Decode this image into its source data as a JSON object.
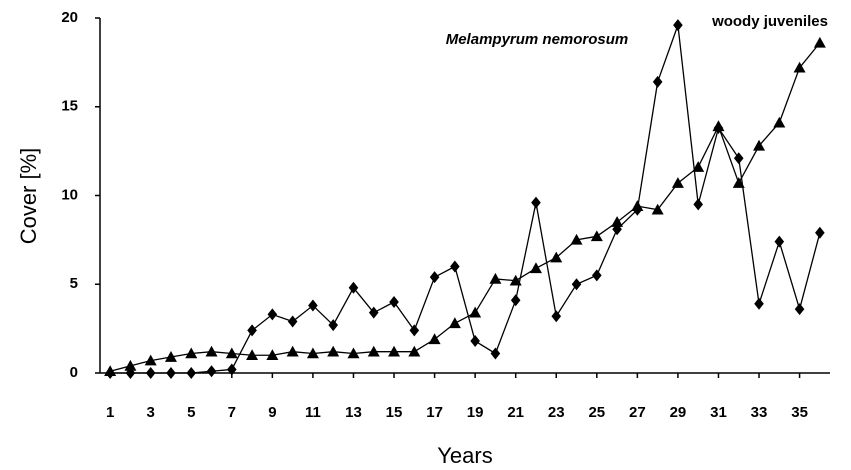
{
  "chart_data": {
    "type": "line",
    "x_label": "Years",
    "y_label": "Cover [%]",
    "x": [
      1,
      2,
      3,
      4,
      5,
      6,
      7,
      8,
      9,
      10,
      11,
      12,
      13,
      14,
      15,
      16,
      17,
      18,
      19,
      20,
      21,
      22,
      23,
      24,
      25,
      26,
      27,
      28,
      29,
      30,
      31,
      32,
      33,
      34,
      35,
      36
    ],
    "series": [
      {
        "name": "Melampyrum nemorosum",
        "color": "#000000",
        "marker": "diamond",
        "values": [
          0,
          0,
          0,
          0,
          0,
          0.1,
          0.2,
          2.4,
          3.3,
          2.9,
          3.8,
          2.7,
          4.8,
          3.4,
          4.0,
          2.4,
          5.4,
          6.0,
          1.8,
          1.1,
          4.1,
          9.6,
          3.2,
          5.0,
          5.5,
          8.1,
          9.2,
          16.4,
          19.6,
          9.5,
          13.8,
          12.1,
          3.9,
          7.4,
          3.6,
          7.9
        ]
      },
      {
        "name": "woody juveniles",
        "color": "#000000",
        "marker": "triangle",
        "values": [
          0.1,
          0.4,
          0.7,
          0.9,
          1.1,
          1.2,
          1.1,
          1.0,
          1.0,
          1.2,
          1.1,
          1.2,
          1.1,
          1.2,
          1.2,
          1.2,
          1.9,
          2.8,
          3.4,
          5.3,
          5.2,
          5.9,
          6.5,
          7.5,
          7.7,
          8.5,
          9.4,
          9.2,
          10.7,
          11.6,
          13.9,
          10.7,
          12.8,
          14.1,
          17.2,
          18.6
        ]
      }
    ],
    "xlim": [
      0.5,
      36.5
    ],
    "xticks": [
      1,
      3,
      5,
      7,
      9,
      11,
      13,
      15,
      17,
      19,
      21,
      23,
      25,
      27,
      29,
      31,
      33,
      35
    ],
    "ylim": [
      0,
      20
    ],
    "yticks": [
      0,
      5,
      10,
      15,
      20
    ],
    "grid": false
  }
}
